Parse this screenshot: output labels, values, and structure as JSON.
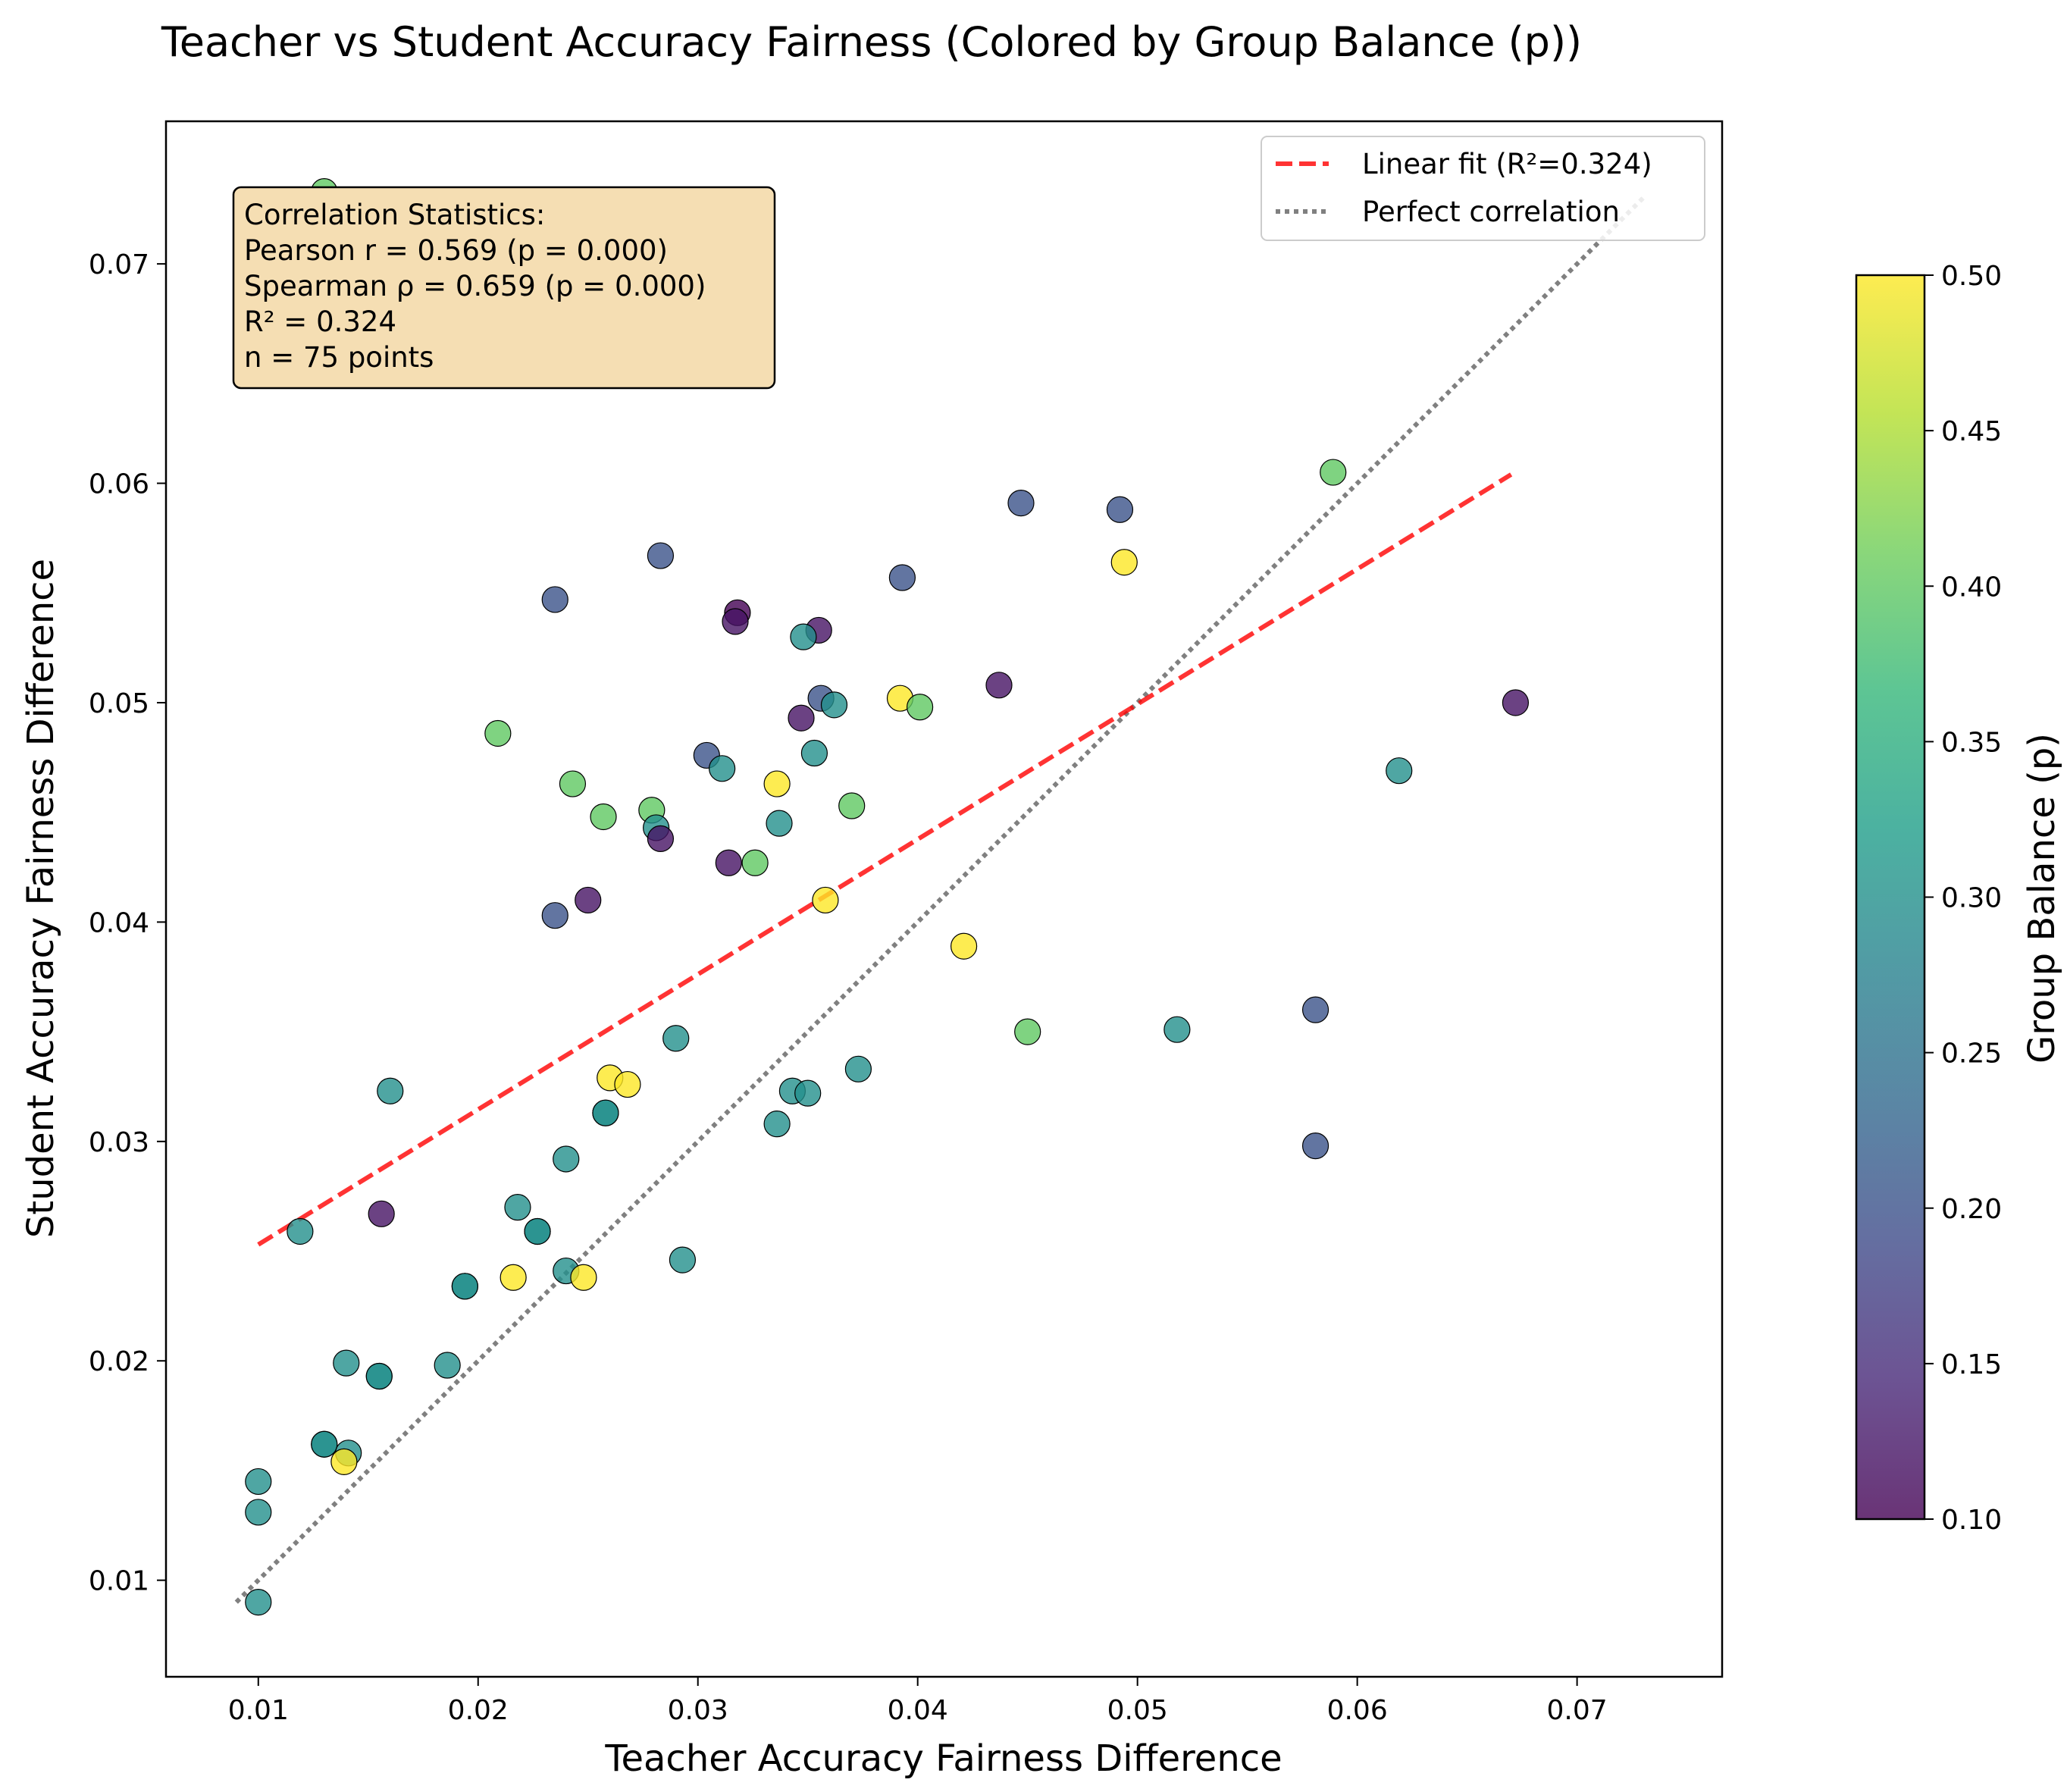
{
  "chart_data": {
    "type": "scatter",
    "title": "Teacher vs Student Accuracy Fairness (Colored by Group Balance (p))",
    "xlabel": "Teacher Accuracy Fairness Difference",
    "ylabel": "Student Accuracy Fairness Difference",
    "xlim": [
      0.0058,
      0.0766
    ],
    "ylim": [
      0.0056,
      0.0765
    ],
    "xticks": [
      0.01,
      0.02,
      0.03,
      0.04,
      0.05,
      0.06,
      0.07
    ],
    "yticks": [
      0.01,
      0.02,
      0.03,
      0.04,
      0.05,
      0.06,
      0.07
    ],
    "xtick_labels": [
      "0.01",
      "0.02",
      "0.03",
      "0.04",
      "0.05",
      "0.06",
      "0.07"
    ],
    "ytick_labels": [
      "0.01",
      "0.02",
      "0.03",
      "0.04",
      "0.05",
      "0.06",
      "0.07"
    ],
    "grid": false,
    "colormap": "viridis",
    "colorbar": {
      "label": "Group Balance (p)",
      "range": [
        0.1,
        0.5
      ],
      "ticks": [
        0.1,
        0.15,
        0.2,
        0.25,
        0.3,
        0.35,
        0.4,
        0.45,
        0.5
      ],
      "tick_labels": [
        "0.10",
        "0.15",
        "0.20",
        "0.25",
        "0.30",
        "0.35",
        "0.40",
        "0.45",
        "0.50"
      ]
    },
    "legend": {
      "position": "top-right",
      "entries": [
        {
          "label": "Linear fit (R²=0.324)",
          "color": "#ff0000",
          "style": "dashed"
        },
        {
          "label": "Perfect correlation",
          "color": "#808080",
          "style": "dotted"
        }
      ]
    },
    "fit_line": {
      "x": [
        0.01,
        0.067
      ],
      "y": [
        0.0253,
        0.0604
      ]
    },
    "identity_line": {
      "x": [
        0.009,
        0.073
      ],
      "y": [
        0.009,
        0.073
      ]
    },
    "stats_box": {
      "lines": [
        "Correlation Statistics:",
        "Pearson r = 0.569 (p = 0.000)",
        "Spearman ρ = 0.659 (p = 0.000)",
        "R² = 0.324",
        "n = 75 points"
      ]
    },
    "points": [
      {
        "x": 0.013,
        "y": 0.0733,
        "p": 0.4
      },
      {
        "x": 0.0235,
        "y": 0.0547,
        "p": 0.2
      },
      {
        "x": 0.0283,
        "y": 0.0567,
        "p": 0.2
      },
      {
        "x": 0.0318,
        "y": 0.0541,
        "p": 0.1
      },
      {
        "x": 0.0317,
        "y": 0.0537,
        "p": 0.12
      },
      {
        "x": 0.0355,
        "y": 0.0533,
        "p": 0.12
      },
      {
        "x": 0.0348,
        "y": 0.053,
        "p": 0.3
      },
      {
        "x": 0.0356,
        "y": 0.0502,
        "p": 0.2
      },
      {
        "x": 0.0362,
        "y": 0.0499,
        "p": 0.3
      },
      {
        "x": 0.0347,
        "y": 0.0493,
        "p": 0.12
      },
      {
        "x": 0.0393,
        "y": 0.0557,
        "p": 0.2
      },
      {
        "x": 0.0447,
        "y": 0.0591,
        "p": 0.2
      },
      {
        "x": 0.0492,
        "y": 0.0588,
        "p": 0.2
      },
      {
        "x": 0.0494,
        "y": 0.0564,
        "p": 0.5
      },
      {
        "x": 0.0589,
        "y": 0.0605,
        "p": 0.4
      },
      {
        "x": 0.0437,
        "y": 0.0508,
        "p": 0.12
      },
      {
        "x": 0.0392,
        "y": 0.0502,
        "p": 0.5
      },
      {
        "x": 0.0401,
        "y": 0.0498,
        "p": 0.4
      },
      {
        "x": 0.0672,
        "y": 0.05,
        "p": 0.12
      },
      {
        "x": 0.0619,
        "y": 0.0469,
        "p": 0.3
      },
      {
        "x": 0.0209,
        "y": 0.0486,
        "p": 0.4
      },
      {
        "x": 0.0304,
        "y": 0.0476,
        "p": 0.2
      },
      {
        "x": 0.0311,
        "y": 0.047,
        "p": 0.3
      },
      {
        "x": 0.0353,
        "y": 0.0477,
        "p": 0.3
      },
      {
        "x": 0.0243,
        "y": 0.0463,
        "p": 0.4
      },
      {
        "x": 0.0336,
        "y": 0.0463,
        "p": 0.5
      },
      {
        "x": 0.0279,
        "y": 0.0451,
        "p": 0.4
      },
      {
        "x": 0.0257,
        "y": 0.0448,
        "p": 0.4
      },
      {
        "x": 0.0281,
        "y": 0.0443,
        "p": 0.3
      },
      {
        "x": 0.0283,
        "y": 0.0438,
        "p": 0.12
      },
      {
        "x": 0.0337,
        "y": 0.0445,
        "p": 0.3
      },
      {
        "x": 0.037,
        "y": 0.0453,
        "p": 0.4
      },
      {
        "x": 0.0314,
        "y": 0.0427,
        "p": 0.12
      },
      {
        "x": 0.0326,
        "y": 0.0427,
        "p": 0.4
      },
      {
        "x": 0.0235,
        "y": 0.0403,
        "p": 0.2
      },
      {
        "x": 0.025,
        "y": 0.041,
        "p": 0.12
      },
      {
        "x": 0.0358,
        "y": 0.041,
        "p": 0.5
      },
      {
        "x": 0.0421,
        "y": 0.0389,
        "p": 0.5
      },
      {
        "x": 0.045,
        "y": 0.035,
        "p": 0.4
      },
      {
        "x": 0.0518,
        "y": 0.0351,
        "p": 0.3
      },
      {
        "x": 0.0581,
        "y": 0.036,
        "p": 0.2
      },
      {
        "x": 0.0581,
        "y": 0.0298,
        "p": 0.2
      },
      {
        "x": 0.029,
        "y": 0.0347,
        "p": 0.3
      },
      {
        "x": 0.0373,
        "y": 0.0333,
        "p": 0.3
      },
      {
        "x": 0.0343,
        "y": 0.0323,
        "p": 0.3
      },
      {
        "x": 0.035,
        "y": 0.0322,
        "p": 0.3
      },
      {
        "x": 0.026,
        "y": 0.0329,
        "p": 0.5
      },
      {
        "x": 0.0268,
        "y": 0.0326,
        "p": 0.5
      },
      {
        "x": 0.0258,
        "y": 0.0313,
        "p": 0.3
      },
      {
        "x": 0.0258,
        "y": 0.0313,
        "p": 0.3
      },
      {
        "x": 0.016,
        "y": 0.0323,
        "p": 0.3
      },
      {
        "x": 0.0336,
        "y": 0.0308,
        "p": 0.3
      },
      {
        "x": 0.024,
        "y": 0.0292,
        "p": 0.3
      },
      {
        "x": 0.0218,
        "y": 0.027,
        "p": 0.3
      },
      {
        "x": 0.0156,
        "y": 0.0267,
        "p": 0.12
      },
      {
        "x": 0.0227,
        "y": 0.0259,
        "p": 0.3
      },
      {
        "x": 0.0227,
        "y": 0.0259,
        "p": 0.3
      },
      {
        "x": 0.0119,
        "y": 0.0259,
        "p": 0.3
      },
      {
        "x": 0.0293,
        "y": 0.0246,
        "p": 0.3
      },
      {
        "x": 0.024,
        "y": 0.0241,
        "p": 0.3
      },
      {
        "x": 0.0216,
        "y": 0.0238,
        "p": 0.5
      },
      {
        "x": 0.0248,
        "y": 0.0238,
        "p": 0.5
      },
      {
        "x": 0.0194,
        "y": 0.0234,
        "p": 0.3
      },
      {
        "x": 0.0194,
        "y": 0.0234,
        "p": 0.3
      },
      {
        "x": 0.014,
        "y": 0.0199,
        "p": 0.3
      },
      {
        "x": 0.0186,
        "y": 0.0198,
        "p": 0.3
      },
      {
        "x": 0.0155,
        "y": 0.0193,
        "p": 0.3
      },
      {
        "x": 0.0155,
        "y": 0.0193,
        "p": 0.3
      },
      {
        "x": 0.013,
        "y": 0.0162,
        "p": 0.3
      },
      {
        "x": 0.013,
        "y": 0.0162,
        "p": 0.3
      },
      {
        "x": 0.0141,
        "y": 0.0158,
        "p": 0.3
      },
      {
        "x": 0.0139,
        "y": 0.0154,
        "p": 0.5
      },
      {
        "x": 0.01,
        "y": 0.0145,
        "p": 0.3
      },
      {
        "x": 0.01,
        "y": 0.0131,
        "p": 0.3
      },
      {
        "x": 0.01,
        "y": 0.009,
        "p": 0.3
      }
    ]
  }
}
